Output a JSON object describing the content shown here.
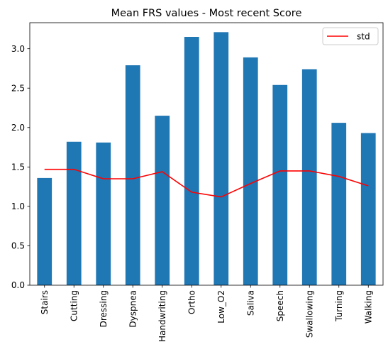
{
  "chart_data": {
    "type": "bar",
    "title": "Mean FRS values - Most recent Score",
    "xlabel": "",
    "ylabel": "",
    "categories": [
      "Stairs",
      "Cutting",
      "Dressing",
      "Dyspnea",
      "Handwriting",
      "Ortho",
      "Low_O2",
      "Saliva",
      "Speech",
      "Swallowing",
      "Turning",
      "Walking"
    ],
    "series": [
      {
        "values": [
          1.36,
          1.82,
          1.81,
          2.79,
          2.15,
          3.15,
          3.21,
          2.89,
          2.54,
          2.74,
          2.06,
          1.93
        ],
        "color": "#1f77b4"
      },
      {
        "name": "std",
        "type": "line",
        "values": [
          1.47,
          1.47,
          1.35,
          1.35,
          1.44,
          1.18,
          1.12,
          1.29,
          1.45,
          1.45,
          1.38,
          1.26
        ],
        "color": "#ff0000"
      }
    ],
    "ylim": [
      0,
      3.33
    ],
    "yticks": [
      "0.0",
      "0.5",
      "1.0",
      "1.5",
      "2.0",
      "2.5",
      "3.0"
    ],
    "grid": false,
    "legend": "top-right"
  }
}
